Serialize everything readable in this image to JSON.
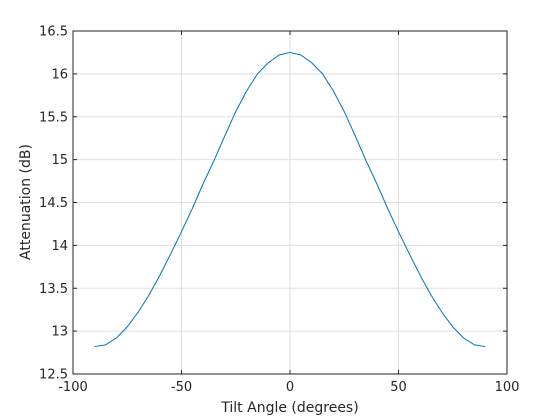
{
  "chart_data": {
    "type": "line",
    "xlabel": "Tilt Angle (degrees)",
    "ylabel": "Attenuation (dB)",
    "xlim": [
      -100,
      100
    ],
    "ylim": [
      12.5,
      16.5
    ],
    "xticks": [
      -100,
      -50,
      0,
      50,
      100
    ],
    "yticks": [
      12.5,
      13,
      13.5,
      14,
      14.5,
      15,
      15.5,
      16,
      16.5
    ],
    "xtick_labels": [
      "-100",
      "-50",
      "0",
      "50",
      "100"
    ],
    "ytick_labels": [
      "12.5",
      "13",
      "13.5",
      "14",
      "14.5",
      "15",
      "15.5",
      "16",
      "16.5"
    ],
    "grid": true,
    "line_color": "#0072bd",
    "series": [
      {
        "x": [
          -90,
          -85,
          -80,
          -75,
          -70,
          -65,
          -60,
          -55,
          -50,
          -45,
          -40,
          -35,
          -30,
          -25,
          -20,
          -15,
          -10,
          -5,
          0,
          5,
          10,
          15,
          20,
          25,
          30,
          35,
          40,
          45,
          50,
          55,
          60,
          65,
          70,
          75,
          80,
          85,
          90
        ],
        "y": [
          12.82,
          12.84,
          12.92,
          13.05,
          13.22,
          13.42,
          13.65,
          13.9,
          14.16,
          14.43,
          14.72,
          14.99,
          15.28,
          15.56,
          15.8,
          16.0,
          16.13,
          16.22,
          16.25,
          16.22,
          16.13,
          16.0,
          15.8,
          15.56,
          15.28,
          14.99,
          14.72,
          14.43,
          14.16,
          13.9,
          13.65,
          13.42,
          13.22,
          13.05,
          12.92,
          12.84,
          12.82
        ]
      }
    ]
  }
}
